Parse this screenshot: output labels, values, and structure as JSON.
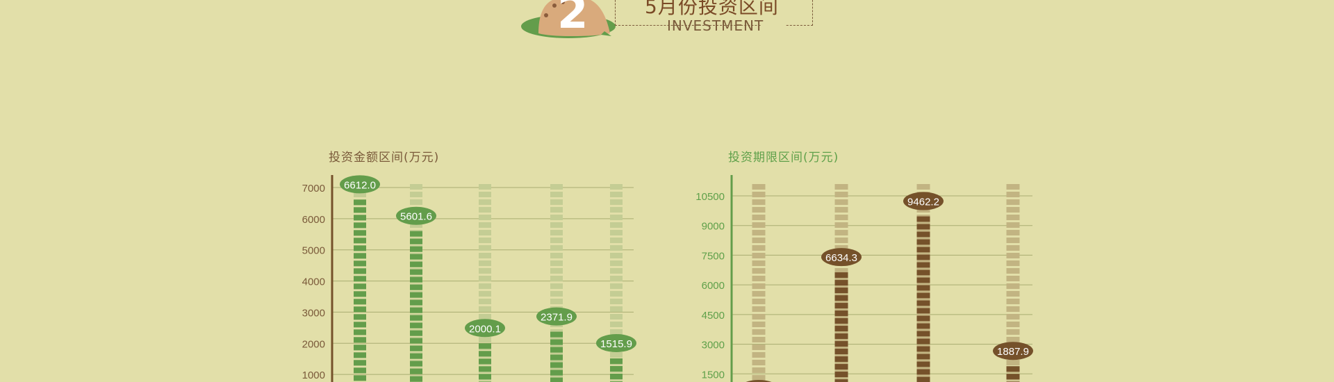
{
  "header": {
    "number": "2",
    "title": "5月份投资区间",
    "subtitle": "INVESTMENT"
  },
  "colors": {
    "background": "#e2dfa9",
    "green": "#639d4b",
    "green_light": "#c4cd94",
    "brown": "#75512a",
    "brown_light": "#c2b482",
    "grid": "#a9ad72"
  },
  "chart_data": [
    {
      "type": "bar",
      "title": "投资金额区间(万元)",
      "ylim": [
        0,
        7000
      ],
      "yticks": [
        1000,
        2000,
        3000,
        4000,
        5000,
        6000,
        7000
      ],
      "grid": true,
      "series": [
        {
          "values": [
            6612.0,
            5601.6,
            2000.1,
            2371.9,
            1515.9
          ]
        }
      ],
      "data_labels": [
        "6612.0",
        "5601.6",
        "2000.1",
        "2371.9",
        "1515.9"
      ]
    },
    {
      "type": "bar",
      "title": "投资期限区间(万元)",
      "ylim": [
        0,
        10500
      ],
      "yticks": [
        1500,
        3000,
        4500,
        6000,
        7500,
        9000,
        10500
      ],
      "grid": true,
      "series": [
        {
          "values": [
            0,
            6634.3,
            9462.2,
            1887.9
          ]
        }
      ],
      "data_labels": [
        "",
        "6634.3",
        "9462.2",
        "1887.9"
      ]
    }
  ]
}
